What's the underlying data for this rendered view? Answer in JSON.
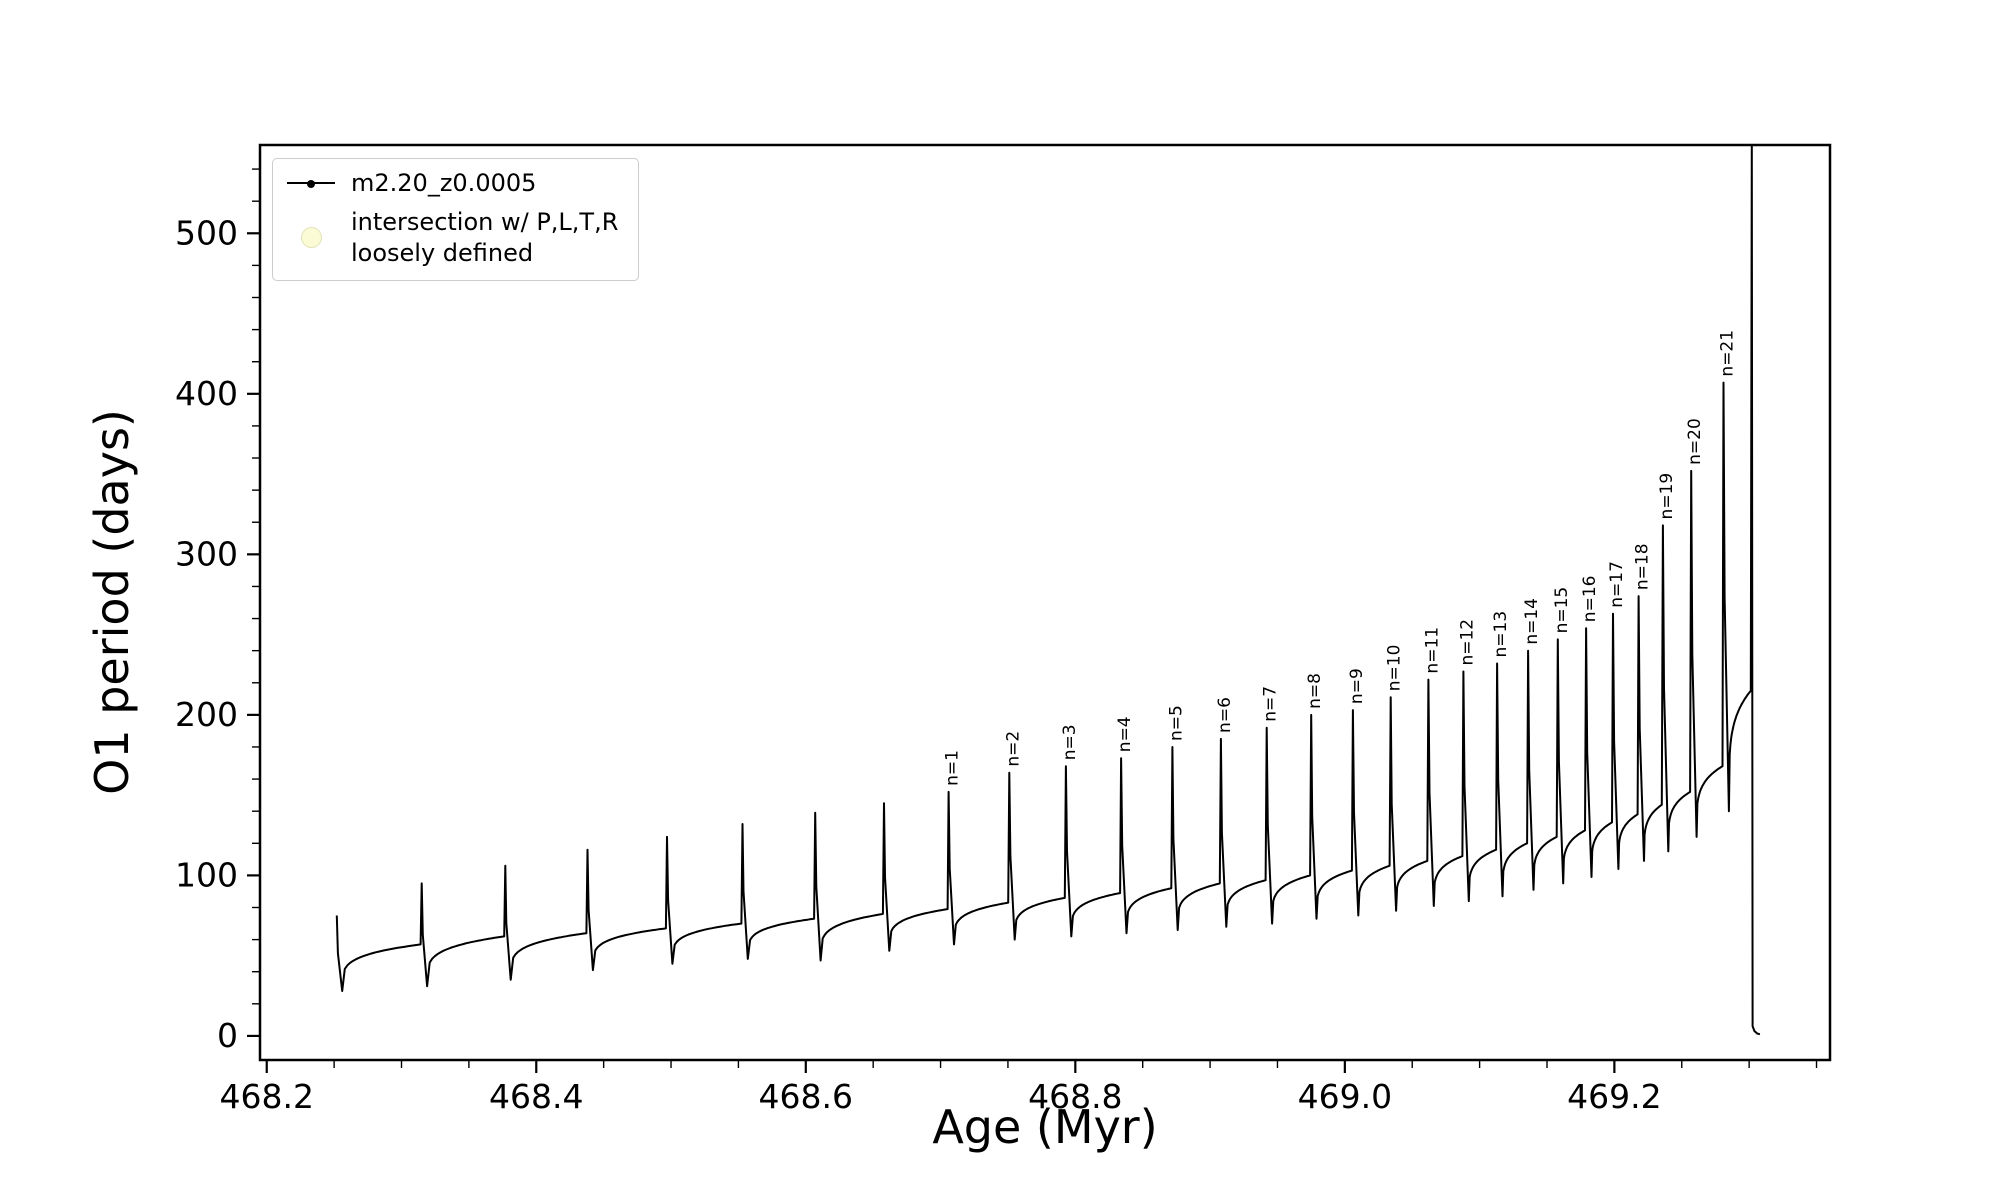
{
  "figure": {
    "background": "#ffffff"
  },
  "legend": {
    "entry1_label": "m2.20_z0.0005",
    "entry2_line1": "intersection w/ P,L,T,R",
    "entry2_line2": "loosely defined"
  },
  "chart_data": {
    "type": "line",
    "title": "",
    "xlabel": "Age (Myr)",
    "ylabel": "O1 period (days)",
    "xlim": [
      468.195,
      469.36
    ],
    "ylim": [
      -15,
      555
    ],
    "xticks": [
      468.2,
      468.4,
      468.6,
      468.8,
      469.0,
      469.2
    ],
    "xticklabels": [
      "468.2",
      "468.4",
      "468.6",
      "468.8",
      "469.0",
      "469.2"
    ],
    "yticks": [
      0,
      100,
      200,
      300,
      400,
      500
    ],
    "yticklabels": [
      "0",
      "100",
      "200",
      "300",
      "400",
      "500"
    ],
    "minor_x_step": 0.05,
    "minor_y_step": 20,
    "grid": false,
    "legend_position": "upper-left",
    "series_name": "m2.20_z0.0005",
    "colors": {
      "series": "#000000",
      "intersection_marker": "#fafac8",
      "legend_edge": "#cccccc"
    },
    "cycles": [
      {
        "age": 468.252,
        "peak": 75,
        "dip": 28,
        "plateau": 57,
        "label": ""
      },
      {
        "age": 468.315,
        "peak": 95,
        "dip": 31,
        "plateau": 62,
        "label": ""
      },
      {
        "age": 468.377,
        "peak": 106,
        "dip": 35,
        "plateau": 64,
        "label": ""
      },
      {
        "age": 468.438,
        "peak": 116,
        "dip": 41,
        "plateau": 67,
        "label": ""
      },
      {
        "age": 468.497,
        "peak": 124,
        "dip": 45,
        "plateau": 70,
        "label": ""
      },
      {
        "age": 468.553,
        "peak": 132,
        "dip": 48,
        "plateau": 73,
        "label": ""
      },
      {
        "age": 468.607,
        "peak": 139,
        "dip": 47,
        "plateau": 76,
        "label": ""
      },
      {
        "age": 468.658,
        "peak": 145,
        "dip": 53,
        "plateau": 79,
        "label": ""
      },
      {
        "age": 468.706,
        "peak": 152,
        "dip": 57,
        "plateau": 83,
        "label": "n=1"
      },
      {
        "age": 468.751,
        "peak": 164,
        "dip": 60,
        "plateau": 86,
        "label": "n=2"
      },
      {
        "age": 468.793,
        "peak": 168,
        "dip": 62,
        "plateau": 89,
        "label": "n=3"
      },
      {
        "age": 468.834,
        "peak": 173,
        "dip": 64,
        "plateau": 92,
        "label": "n=4"
      },
      {
        "age": 468.872,
        "peak": 180,
        "dip": 66,
        "plateau": 95,
        "label": "n=5"
      },
      {
        "age": 468.908,
        "peak": 185,
        "dip": 68,
        "plateau": 97,
        "label": "n=6"
      },
      {
        "age": 468.942,
        "peak": 192,
        "dip": 70,
        "plateau": 100,
        "label": "n=7"
      },
      {
        "age": 468.975,
        "peak": 200,
        "dip": 73,
        "plateau": 103,
        "label": "n=8"
      },
      {
        "age": 469.006,
        "peak": 203,
        "dip": 75,
        "plateau": 106,
        "label": "n=9"
      },
      {
        "age": 469.034,
        "peak": 211,
        "dip": 78,
        "plateau": 109,
        "label": "n=10"
      },
      {
        "age": 469.062,
        "peak": 222,
        "dip": 81,
        "plateau": 112,
        "label": "n=11"
      },
      {
        "age": 469.088,
        "peak": 227,
        "dip": 84,
        "plateau": 116,
        "label": "n=12"
      },
      {
        "age": 469.113,
        "peak": 232,
        "dip": 87,
        "plateau": 120,
        "label": "n=13"
      },
      {
        "age": 469.136,
        "peak": 240,
        "dip": 91,
        "plateau": 124,
        "label": "n=14"
      },
      {
        "age": 469.158,
        "peak": 247,
        "dip": 95,
        "plateau": 128,
        "label": "n=15"
      },
      {
        "age": 469.179,
        "peak": 254,
        "dip": 99,
        "plateau": 133,
        "label": "n=16"
      },
      {
        "age": 469.199,
        "peak": 263,
        "dip": 104,
        "plateau": 138,
        "label": "n=17"
      },
      {
        "age": 469.218,
        "peak": 274,
        "dip": 109,
        "plateau": 144,
        "label": "n=18"
      },
      {
        "age": 469.236,
        "peak": 318,
        "dip": 115,
        "plateau": 152,
        "label": "n=19"
      },
      {
        "age": 469.257,
        "peak": 352,
        "dip": 124,
        "plateau": 168,
        "label": "n=20"
      },
      {
        "age": 469.281,
        "peak": 407,
        "dip": 140,
        "plateau": 215,
        "label": "n=21"
      }
    ],
    "final_event": {
      "age": 469.302,
      "peak": 558,
      "tail": [
        [
          469.3026,
          6
        ],
        [
          469.304,
          3
        ],
        [
          469.306,
          1.5
        ],
        [
          469.308,
          1
        ]
      ]
    }
  }
}
